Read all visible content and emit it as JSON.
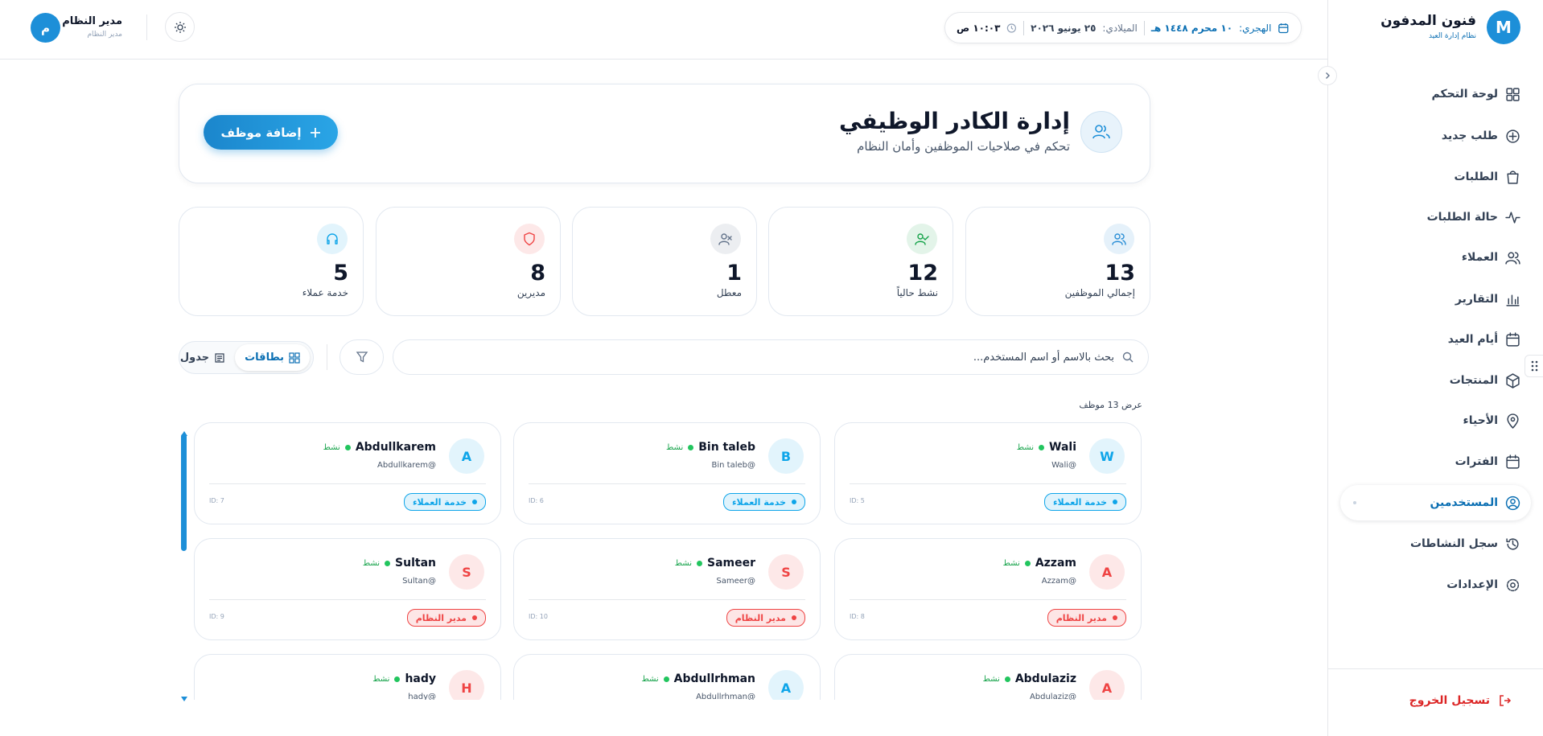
{
  "sidebar": {
    "logo": "M",
    "title": "فنون المدفون",
    "subtitle": "نظام إدارة العيد",
    "nav": [
      {
        "label": "لوحة التحكم"
      },
      {
        "label": "طلب جديد"
      },
      {
        "label": "الطلبات"
      },
      {
        "label": "حالة الطلبات"
      },
      {
        "label": "العملاء"
      },
      {
        "label": "التقارير"
      },
      {
        "label": "أيام العيد"
      },
      {
        "label": "المنتجات"
      },
      {
        "label": "الأحياء"
      },
      {
        "label": "الفترات"
      },
      {
        "label": "المستخدمين",
        "active": true
      },
      {
        "label": "سجل النشاطات"
      },
      {
        "label": "الإعدادات"
      }
    ],
    "logout": "تسجيل الخروج"
  },
  "topbar": {
    "hijri_label": "الهجري:",
    "hijri_date": "١٠ محرم ١٤٤٨ هـ",
    "gregorian_label": "الميلادي:",
    "gregorian_date": "٢٥ يونيو ٢٠٢٦",
    "time": "١٠:٠٣ ص",
    "user": {
      "avatar": "م",
      "name": "مدير النظام",
      "role": "مدير النظام"
    }
  },
  "header": {
    "title": "إدارة الكادر الوظيفي",
    "subtitle": "تحكم في صلاحيات الموظفين وأمان النظام",
    "button": "إضافة موظف"
  },
  "stats": [
    {
      "value": "13",
      "label": "إجمالي الموظفين",
      "color": "#2b8fd6"
    },
    {
      "value": "12",
      "label": "نشط حالياً",
      "color": "#16a34a"
    },
    {
      "value": "1",
      "label": "معطل",
      "color": "#64748b"
    },
    {
      "value": "8",
      "label": "مديرين",
      "color": "#ef4444"
    },
    {
      "value": "5",
      "label": "خدمة عملاء",
      "color": "#0ea5e9"
    }
  ],
  "toolbar": {
    "search_placeholder": "بحث بالاسم أو اسم المستخدم...",
    "views": [
      "بطاقات",
      "جدول"
    ]
  },
  "count": "عرض 13 موظف",
  "employees": [
    {
      "initial": "W",
      "name": "Wali",
      "status": "نشط",
      "handle": "@Wali",
      "role": "خدمة العملاء",
      "id": "ID: 5",
      "color": "#0ea5e9"
    },
    {
      "initial": "B",
      "name": "Bin taleb",
      "status": "نشط",
      "handle": "@Bin taleb",
      "role": "خدمة العملاء",
      "id": "ID: 6",
      "color": "#0ea5e9"
    },
    {
      "initial": "A",
      "name": "Abdullkarem",
      "status": "نشط",
      "handle": "@Abdullkarem",
      "role": "خدمة العملاء",
      "id": "ID: 7",
      "color": "#0ea5e9"
    },
    {
      "initial": "A",
      "name": "Azzam",
      "status": "نشط",
      "handle": "@Azzam",
      "role": "مدير النظام",
      "id": "ID: 8",
      "color": "#ef4444"
    },
    {
      "initial": "S",
      "name": "Sameer",
      "status": "نشط",
      "handle": "@Sameer",
      "role": "مدير النظام",
      "id": "ID: 10",
      "color": "#ef4444"
    },
    {
      "initial": "S",
      "name": "Sultan",
      "status": "نشط",
      "handle": "@Sultan",
      "role": "مدير النظام",
      "id": "ID: 9",
      "color": "#ef4444"
    },
    {
      "initial": "A",
      "name": "Abdulaziz",
      "status": "نشط",
      "handle": "@Abdulaziz",
      "color": "#ef4444"
    },
    {
      "initial": "A",
      "name": "Abdullrhman",
      "status": "نشط",
      "handle": "@Abdullrhman",
      "color": "#0ea5e9"
    },
    {
      "initial": "H",
      "name": "hady",
      "status": "نشط",
      "handle": "@hady",
      "color": "#ef4444"
    }
  ]
}
